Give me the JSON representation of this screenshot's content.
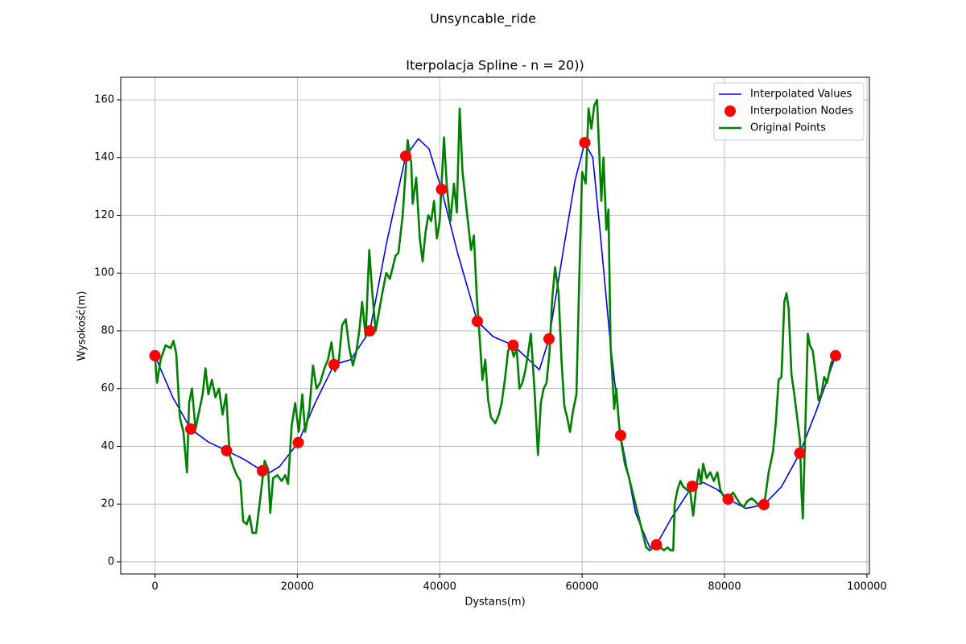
{
  "chart_data": {
    "type": "line",
    "suptitle": "Unsyncable_ride",
    "title": "Iterpolacja Spline - n = 20))",
    "x_label": "Dystans(m)",
    "y_label": "Wysokość(m)",
    "xlim": [
      -4800,
      100350
    ],
    "ylim": [
      -4.2,
      167.8
    ],
    "xticks": [
      0,
      20000,
      40000,
      60000,
      80000,
      100000
    ],
    "yticks": [
      0,
      20,
      40,
      60,
      80,
      100,
      120,
      140,
      160
    ],
    "grid": true,
    "legend": "upper right",
    "series": [
      {
        "name": "Interpolated Values",
        "color": "#0000ff",
        "type": "line",
        "x": [
          0,
          2500,
          5031,
          7500,
          10063,
          12500,
          15094,
          16200,
          17500,
          20126,
          22500,
          25157,
          27500,
          30189,
          32500,
          35220,
          37000,
          38500,
          40251,
          42500,
          45283,
          47500,
          50314,
          52500,
          54000,
          55346,
          57500,
          59000,
          60377,
          61500,
          62500,
          64000,
          65409,
          67500,
          69500,
          70440,
          72500,
          75471,
          77000,
          79000,
          80503,
          83000,
          85534,
          88000,
          90566,
          93000,
          95597
        ],
        "values": [
          71.4,
          57,
          46,
          41.5,
          38.5,
          35.5,
          31.5,
          31,
          33,
          41.3,
          55,
          68.3,
          70,
          80,
          110,
          140.5,
          146.5,
          143,
          129,
          107,
          83.3,
          78,
          75,
          70,
          66.5,
          77.2,
          110,
          132,
          145.2,
          140,
          115,
          75,
          43.8,
          17,
          5,
          5.9,
          15,
          26.2,
          27.5,
          25,
          21.7,
          18.5,
          19.8,
          26,
          37.6,
          53,
          71.4
        ]
      },
      {
        "name": "Interpolation Nodes",
        "color": "#ff0000",
        "type": "scatter",
        "x": [
          0,
          5031,
          10063,
          15094,
          20126,
          25157,
          30189,
          35220,
          40251,
          45283,
          50314,
          55346,
          60377,
          65409,
          70440,
          75471,
          80503,
          85534,
          90566,
          95597
        ],
        "values": [
          71.4,
          46,
          38.5,
          31.5,
          41.3,
          68.3,
          80,
          140.5,
          129,
          83.3,
          75,
          77.2,
          145.2,
          43.8,
          5.9,
          26.2,
          21.7,
          19.8,
          37.6,
          71.4
        ]
      },
      {
        "name": "Original Points",
        "color": "#008000",
        "type": "line",
        "x": [
          0,
          300,
          800,
          1500,
          2200,
          2600,
          3000,
          3500,
          4000,
          4500,
          4800,
          5200,
          5700,
          6200,
          6700,
          7100,
          7500,
          8000,
          8500,
          9000,
          9500,
          10000,
          10500,
          11000,
          11500,
          12000,
          12400,
          12900,
          13300,
          13700,
          14200,
          14800,
          15400,
          15900,
          16200,
          16600,
          17200,
          17800,
          18300,
          18700,
          19200,
          19700,
          20200,
          20700,
          21100,
          21700,
          22200,
          22700,
          23200,
          23800,
          24300,
          24800,
          25300,
          25800,
          26300,
          26800,
          27300,
          27800,
          28300,
          28700,
          29100,
          29600,
          30100,
          30500,
          31000,
          31500,
          32000,
          32500,
          33000,
          33800,
          34200,
          34800,
          35500,
          36000,
          36200,
          36700,
          37200,
          37600,
          38000,
          38400,
          38800,
          39200,
          39600,
          40000,
          40600,
          41000,
          41500,
          42000,
          42400,
          42800,
          43200,
          43600,
          44000,
          44400,
          44800,
          45200,
          45600,
          46000,
          46400,
          46800,
          47200,
          47800,
          48300,
          48700,
          49200,
          49600,
          50000,
          50400,
          50800,
          51200,
          51600,
          52000,
          52400,
          52800,
          53300,
          53800,
          54200,
          54600,
          55000,
          55400,
          55800,
          56200,
          56700,
          57100,
          57500,
          57900,
          58300,
          58700,
          59200,
          59600,
          60000,
          60500,
          60900,
          61300,
          61700,
          62100,
          62400,
          62700,
          63000,
          63400,
          63700,
          64000,
          64500,
          64800,
          65200,
          65600,
          66000,
          66500,
          67000,
          67500,
          68000,
          68500,
          69000,
          69500,
          70000,
          70600,
          71000,
          71500,
          72000,
          72400,
          72800,
          73000,
          73400,
          73800,
          74200,
          74700,
          75200,
          75600,
          76000,
          76400,
          76700,
          77000,
          77500,
          78000,
          78500,
          79000,
          79400,
          79800,
          80500,
          81200,
          81700,
          82200,
          82700,
          83200,
          83800,
          84300,
          85000,
          85700,
          86200,
          86800,
          87200,
          87600,
          88000,
          88400,
          88700,
          89000,
          89400,
          89800,
          90200,
          90600,
          90800,
          91000,
          91300,
          91700,
          92000,
          92400,
          92800,
          93200,
          93600,
          94000,
          94400,
          95000,
          95600
        ],
        "values": [
          71,
          62,
          70,
          75,
          74,
          76.5,
          72,
          50,
          45,
          31,
          55,
          60,
          46,
          52,
          58,
          67,
          58,
          63,
          57,
          60,
          51,
          58,
          37,
          33,
          30,
          28,
          14,
          13,
          16,
          10,
          10,
          22,
          35,
          32,
          17,
          29,
          30,
          28,
          30,
          27,
          47,
          55,
          45,
          58,
          45,
          53,
          68,
          60,
          62,
          67,
          70,
          76,
          66,
          69,
          82,
          84,
          74,
          68,
          73,
          80,
          90,
          78,
          108,
          94,
          80,
          87,
          94,
          100,
          98,
          106,
          107,
          120,
          146,
          138,
          124,
          133,
          112,
          104,
          114,
          120,
          118,
          125,
          112,
          118,
          147,
          130,
          118,
          131,
          121,
          157,
          135,
          126,
          117,
          108,
          113,
          92,
          78,
          63,
          70,
          56,
          50,
          48,
          51,
          55,
          64,
          73,
          75,
          71,
          74,
          60,
          62,
          66,
          72,
          79,
          60,
          37,
          55,
          60,
          62,
          72,
          91,
          102,
          93,
          70,
          54,
          50,
          45,
          52,
          58,
          98,
          135,
          131,
          157,
          150,
          158,
          160,
          142,
          125,
          140,
          115,
          122,
          75,
          53,
          60,
          47,
          40,
          34,
          30,
          25,
          20,
          15,
          10,
          5,
          4,
          5,
          6,
          5,
          4,
          5,
          4,
          4,
          20,
          25,
          28,
          26,
          25,
          24,
          16,
          25,
          32,
          27,
          34,
          29,
          31,
          28,
          31,
          25,
          23,
          22,
          24,
          22,
          20,
          19,
          21,
          22,
          21,
          19,
          22,
          31,
          38,
          48,
          63,
          64,
          90,
          93,
          88,
          65,
          58,
          50,
          42,
          25,
          15,
          42,
          79,
          75,
          73,
          65,
          56,
          58,
          64,
          62,
          69,
          71
        ]
      }
    ]
  }
}
